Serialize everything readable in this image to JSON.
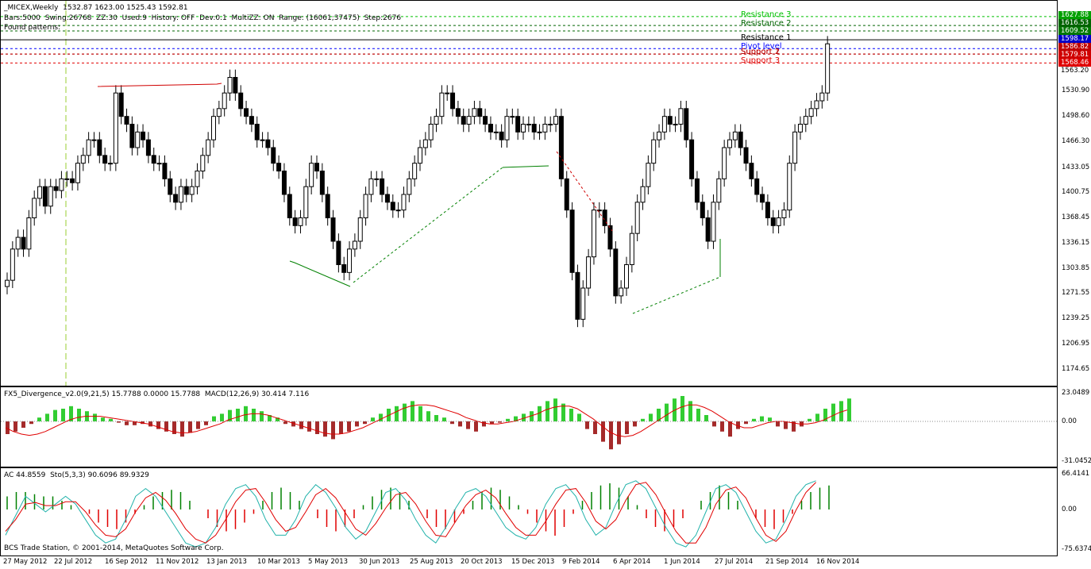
{
  "main_header": {
    "title": "_MICEX,Weekly  1532.87 1623.00 1525.43 1592.81",
    "line2": "Bars:5000  Swing:26768  ZZ:30  Used:9  History: OFF  Dev:0.1  MultiZZ: ON  Range: (16061;37475)  Step:2676",
    "line3": "Found patterns:"
  },
  "levels": [
    {
      "label": "Resistance 3",
      "value": 1627.88,
      "color": "#00c000",
      "tag_bg": "#00a000"
    },
    {
      "label": "Resistance 2",
      "value": 1616.53,
      "color": "#006400",
      "tag_bg": "#006400"
    },
    {
      "label": "",
      "value": 1609.52,
      "color": "#006400",
      "tag_bg": "#007800"
    },
    {
      "label": "Resistance 1",
      "value": 1598.17,
      "color": "#000000",
      "tag_bg": "#0000c8",
      "tag_only": false
    },
    {
      "label": "Pivot level",
      "value": 1586.82,
      "color": "#0000ff",
      "tag_bg": "#c00000"
    },
    {
      "label": "Support 1",
      "value": 1579.81,
      "color": "#a00000",
      "tag_bg": "#d00000"
    },
    {
      "label": "Support 2",
      "value": 1579.81,
      "color": "#c00000",
      "tag_bg": "#d00000"
    },
    {
      "label": "Support 3",
      "value": 1568.46,
      "color": "#e00000",
      "tag_bg": "#e00000"
    }
  ],
  "price_tags": [
    "1627.88",
    "1616.53",
    "1609.52",
    "1598.17",
    "1586.82",
    "1579.81",
    "1568.46",
    "1563.20"
  ],
  "price_scale": [
    "1530.90",
    "1498.60",
    "1466.30",
    "1433.05",
    "1400.75",
    "1368.45",
    "1336.15",
    "1303.85",
    "1271.55",
    "1239.25",
    "1206.95",
    "1174.65"
  ],
  "divergence_header": "FX5_Divergence_v2.0(9,21,5) 15.7788 0.0000 15.7788  MACD(12,26,9) 30.414 7.116",
  "divergence_scale": [
    "23.0489",
    "0.00",
    "-31.0452"
  ],
  "ac_header": "AC 44.8559  Sto(5,3,3) 90.6096 89.9329",
  "ac_scale": [
    "66.4141",
    "0.00",
    "-75.6374"
  ],
  "copyright": "BCS Trade Station, © 2001-2014, MetaQuotes Software Corp.",
  "dates": [
    "27 May 2012",
    "22 Jul 2012",
    "16 Sep 2012",
    "11 Nov 2012",
    "13 Jan 2013",
    "10 Mar 2013",
    "5 May 2013",
    "30 Jun 2013",
    "25 Aug 2013",
    "20 Oct 2013",
    "15 Dec 2013",
    "9 Feb 2014",
    "6 Apr 2014",
    "1 Jun 2014",
    "27 Jul 2014",
    "21 Sep 2014",
    "16 Nov 2014"
  ],
  "chart_data": {
    "type": "candlestick",
    "symbol": "_MICEX",
    "timeframe": "Weekly",
    "last": {
      "open": 1532.87,
      "high": 1623.0,
      "low": 1525.43,
      "close": 1592.81
    },
    "ylim": [
      1160,
      1640
    ],
    "closes": [
      1290,
      1330,
      1345,
      1330,
      1370,
      1395,
      1410,
      1385,
      1410,
      1405,
      1420,
      1420,
      1415,
      1440,
      1450,
      1470,
      1470,
      1450,
      1440,
      1440,
      1530,
      1500,
      1490,
      1460,
      1480,
      1470,
      1450,
      1440,
      1440,
      1420,
      1400,
      1390,
      1410,
      1400,
      1410,
      1430,
      1450,
      1470,
      1500,
      1510,
      1530,
      1550,
      1530,
      1510,
      1500,
      1490,
      1470,
      1470,
      1460,
      1440,
      1430,
      1400,
      1370,
      1360,
      1370,
      1410,
      1440,
      1430,
      1400,
      1370,
      1340,
      1310,
      1300,
      1330,
      1340,
      1370,
      1400,
      1420,
      1420,
      1400,
      1390,
      1380,
      1380,
      1400,
      1420,
      1440,
      1460,
      1470,
      1490,
      1500,
      1530,
      1530,
      1510,
      1500,
      1490,
      1500,
      1510,
      1500,
      1490,
      1480,
      1480,
      1470,
      1500,
      1500,
      1480,
      1490,
      1490,
      1480,
      1480,
      1490,
      1490,
      1500,
      1420,
      1380,
      1300,
      1240,
      1280,
      1320,
      1380,
      1380,
      1360,
      1330,
      1270,
      1280,
      1310,
      1350,
      1390,
      1410,
      1440,
      1470,
      1480,
      1500,
      1490,
      1490,
      1510,
      1470,
      1420,
      1390,
      1370,
      1340,
      1390,
      1420,
      1460,
      1470,
      1480,
      1460,
      1440,
      1420,
      1400,
      1390,
      1370,
      1360,
      1370,
      1380,
      1440,
      1480,
      1490,
      1500,
      1510,
      1520,
      1530,
      1593
    ],
    "macd_hist": [
      -10,
      -8,
      -5,
      -2,
      3,
      6,
      9,
      10,
      12,
      10,
      8,
      6,
      3,
      2,
      -1,
      -3,
      -3,
      -2,
      -4,
      -6,
      -8,
      -10,
      -12,
      -9,
      -6,
      -3,
      4,
      6,
      9,
      10,
      12,
      10,
      8,
      5,
      3,
      -2,
      -4,
      -6,
      -8,
      -10,
      -12,
      -14,
      -10,
      -8,
      -4,
      -2,
      3,
      6,
      10,
      12,
      14,
      16,
      12,
      8,
      5,
      3,
      -2,
      -4,
      -6,
      -8,
      -4,
      -2,
      -1,
      2,
      4,
      6,
      8,
      12,
      16,
      18,
      14,
      10,
      6,
      -6,
      -10,
      -16,
      -22,
      -18,
      -10,
      -4,
      2,
      6,
      10,
      14,
      18,
      20,
      16,
      10,
      5,
      -4,
      -8,
      -12,
      -6,
      -2,
      2,
      4,
      3,
      -4,
      -6,
      -8,
      -4,
      2,
      6,
      10,
      14,
      16,
      18
    ],
    "macd_signal": [
      -5,
      -8,
      -10,
      -11,
      -10,
      -8,
      -5,
      -2,
      1,
      3,
      4,
      4,
      4,
      3,
      2,
      1,
      0,
      -1,
      -2,
      -4,
      -6,
      -8,
      -9,
      -9,
      -8,
      -6,
      -4,
      -2,
      1,
      3,
      5,
      6,
      6,
      5,
      3,
      1,
      -1,
      -3,
      -5,
      -7,
      -9,
      -10,
      -10,
      -9,
      -7,
      -5,
      -2,
      1,
      4,
      7,
      10,
      12,
      13,
      13,
      12,
      10,
      8,
      6,
      3,
      1,
      -1,
      -2,
      -2,
      -1,
      0,
      2,
      4,
      6,
      9,
      11,
      12,
      12,
      10,
      6,
      2,
      -3,
      -8,
      -11,
      -12,
      -11,
      -8,
      -4,
      0,
      4,
      8,
      11,
      13,
      13,
      11,
      8,
      4,
      0,
      -3,
      -5,
      -5,
      -3,
      -1,
      0,
      0,
      -1,
      -2,
      -2,
      -1,
      1,
      4,
      7,
      9
    ],
    "ac_hist": [
      30,
      40,
      40,
      35,
      30,
      30,
      20,
      10,
      0,
      -10,
      -30,
      -40,
      -45,
      -30,
      -10,
      10,
      30,
      40,
      45,
      40,
      20,
      0,
      -20,
      -40,
      -50,
      -45,
      -30,
      -10,
      20,
      40,
      50,
      40,
      20,
      0,
      -20,
      -40,
      -50,
      -40,
      -20,
      10,
      30,
      45,
      50,
      40,
      20,
      0,
      -20,
      -40,
      -45,
      -30,
      -10,
      20,
      40,
      50,
      45,
      30,
      10,
      -10,
      -30,
      -50,
      -60,
      -40,
      -10,
      20,
      40,
      55,
      60,
      50,
      30,
      10,
      -20,
      -40,
      -50,
      -40,
      -20,
      0,
      20,
      40,
      55,
      40,
      20,
      0,
      -20,
      -40,
      -45,
      -30,
      -10,
      20,
      40,
      50,
      55
    ],
    "stoch_k": [
      20,
      45,
      70,
      60,
      50,
      60,
      70,
      60,
      40,
      20,
      10,
      15,
      40,
      70,
      80,
      70,
      50,
      30,
      10,
      5,
      10,
      30,
      60,
      80,
      85,
      70,
      40,
      20,
      20,
      40,
      70,
      85,
      75,
      55,
      30,
      15,
      25,
      50,
      75,
      80,
      65,
      40,
      20,
      10,
      30,
      55,
      75,
      80,
      70,
      50,
      30,
      20,
      15,
      30,
      60,
      80,
      85,
      70,
      40,
      20,
      30,
      60,
      85,
      90,
      80,
      55,
      30,
      10,
      5,
      20,
      50,
      80,
      85,
      75,
      50,
      25,
      10,
      15,
      40,
      70,
      85,
      90
    ],
    "stoch_d": [
      25,
      40,
      60,
      62,
      58,
      58,
      63,
      63,
      50,
      33,
      20,
      18,
      28,
      50,
      68,
      75,
      65,
      48,
      28,
      15,
      10,
      20,
      40,
      63,
      78,
      80,
      62,
      40,
      25,
      30,
      50,
      72,
      80,
      68,
      48,
      28,
      20,
      35,
      55,
      72,
      75,
      60,
      38,
      20,
      18,
      38,
      58,
      72,
      78,
      68,
      48,
      30,
      20,
      20,
      38,
      60,
      78,
      80,
      62,
      38,
      28,
      40,
      65,
      85,
      88,
      72,
      48,
      25,
      10,
      10,
      30,
      60,
      78,
      82,
      68,
      42,
      20,
      12,
      25,
      52,
      75,
      88
    ]
  }
}
